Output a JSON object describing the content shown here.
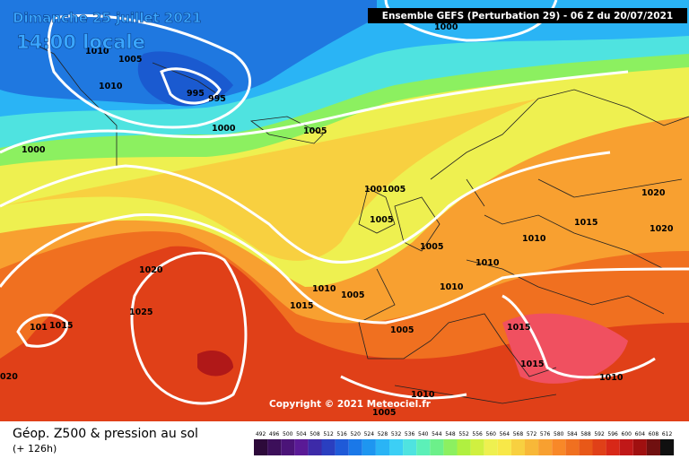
{
  "header": {
    "date": "Dimanche 25 juillet 2021",
    "time": "14:00 locale",
    "run": "Ensemble GEFS  (Perturbation 29)  -  06 Z du 20/07/2021"
  },
  "copyright": "Copyright © 2021 Meteociel.fr",
  "isobar_labels": [
    "1010",
    "1005",
    "1010",
    "995",
    "995",
    "1000",
    "1005",
    "1000",
    "1000",
    "1001005",
    "1005",
    "1005",
    "1010",
    "1010",
    "1015",
    "1020",
    "1020",
    "1020",
    "1025",
    "1010",
    "1005",
    "1015",
    "1010",
    "1005",
    "1015",
    "1015",
    "1010",
    "1010",
    "1005",
    "1015",
    "101",
    "020"
  ],
  "footer": {
    "title": "Géop. Z500 & pression au sol",
    "lead": "(+ 126h)"
  },
  "scale": {
    "labels": [
      "492",
      "496",
      "500",
      "504",
      "508",
      "512",
      "516",
      "520",
      "524",
      "528",
      "532",
      "536",
      "540",
      "544",
      "548",
      "552",
      "556",
      "560",
      "564",
      "568",
      "572",
      "576",
      "580",
      "584",
      "588",
      "592",
      "596",
      "600",
      "604",
      "608",
      "612"
    ],
    "colors": [
      "#2d0a3a",
      "#3c0f5a",
      "#4b1478",
      "#5a1a96",
      "#3d2aa8",
      "#2a3fc0",
      "#1f5ad8",
      "#1a78e8",
      "#1e96f0",
      "#2ab4f5",
      "#3ccff5",
      "#4fe3e0",
      "#5cf0b8",
      "#6cf08a",
      "#8cf060",
      "#b0f040",
      "#d0f040",
      "#eef050",
      "#f8e848",
      "#f8d040",
      "#f8b838",
      "#f8a030",
      "#f88828",
      "#f07020",
      "#e85818",
      "#e04018",
      "#d82818",
      "#c01818",
      "#a01010",
      "#701010",
      "#101010"
    ]
  }
}
